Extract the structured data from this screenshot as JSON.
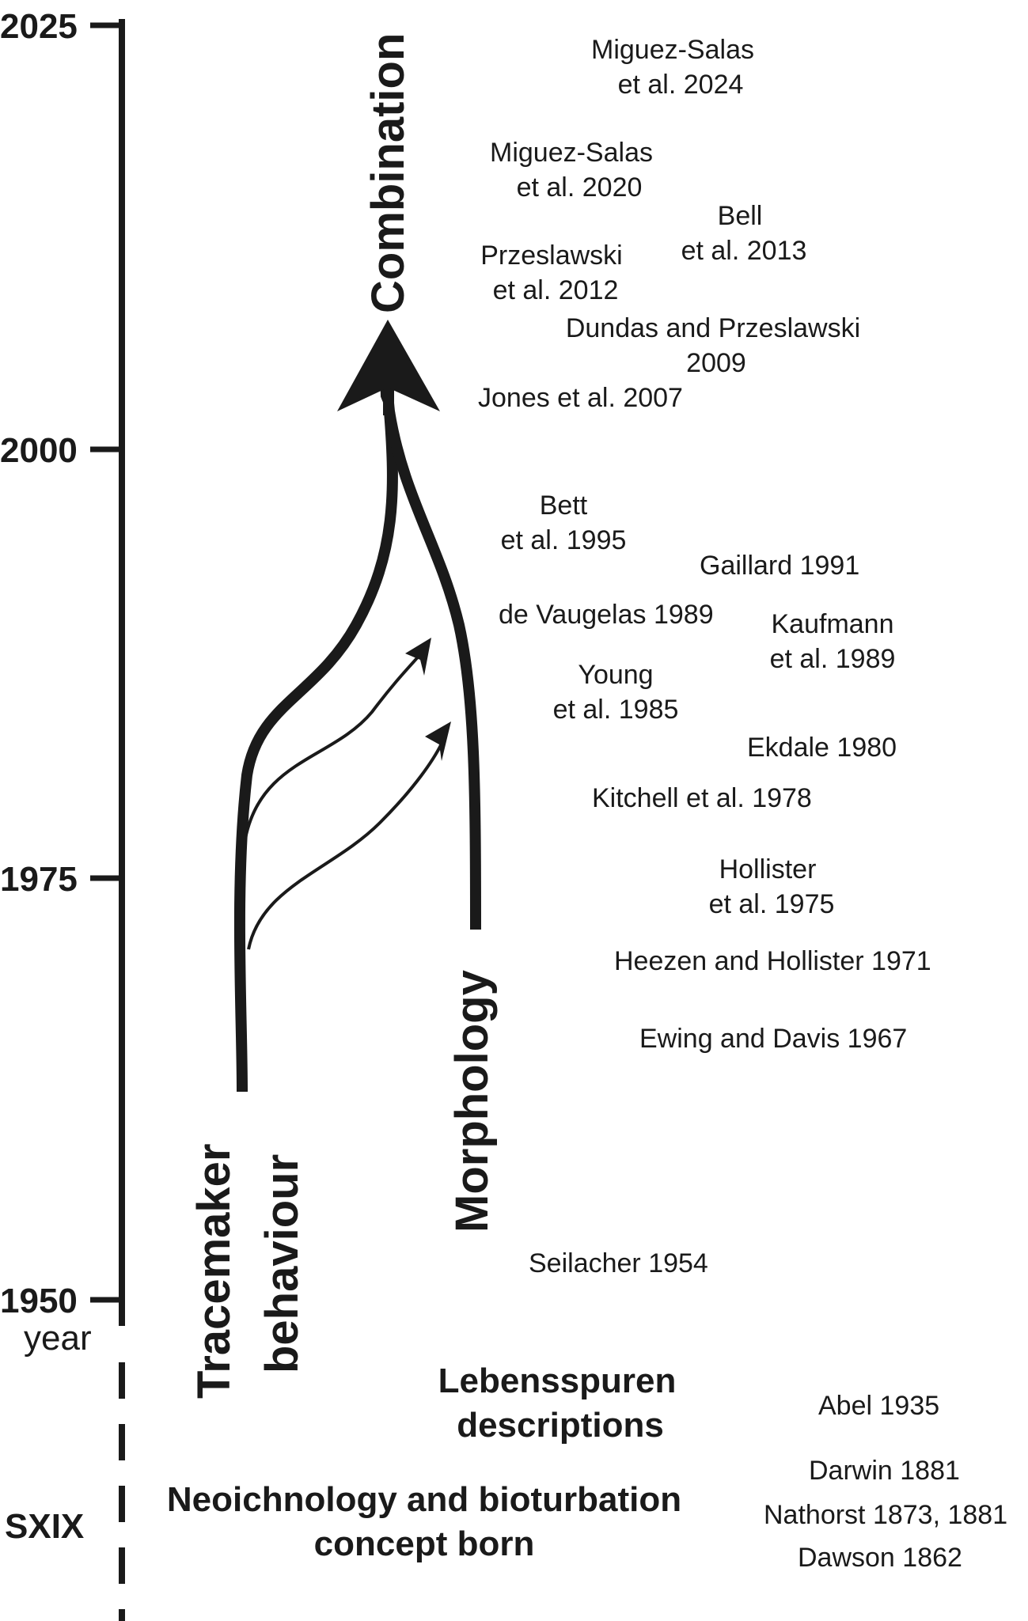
{
  "timeline": {
    "ticks": [
      {
        "label": "2025"
      },
      {
        "label": "2000"
      },
      {
        "label": "1975"
      },
      {
        "label": "1950"
      }
    ],
    "unit_label": "year",
    "era_label": "SXIX"
  },
  "branches": {
    "combination": "Combination",
    "behaviour_line1": "Tracemaker",
    "behaviour_line2": "behaviour",
    "morphology": "Morphology"
  },
  "eras": {
    "lebensspuren_line1": "Lebensspuren",
    "lebensspuren_line2": "descriptions",
    "neoichnology_line1": "Neoichnology and bioturbation",
    "neoichnology_line2": "concept born"
  },
  "references": [
    {
      "lines": [
        "Miguez-Salas",
        "et al. 2024"
      ]
    },
    {
      "lines": [
        "Miguez-Salas",
        "et al. 2020"
      ]
    },
    {
      "lines": [
        "Bell",
        "et al. 2013"
      ]
    },
    {
      "lines": [
        "Przeslawski",
        "et al. 2012"
      ]
    },
    {
      "lines": [
        "Dundas and Przeslawski",
        "2009"
      ]
    },
    {
      "lines": [
        "Jones et al. 2007"
      ]
    },
    {
      "lines": [
        "Bett",
        "et al. 1995"
      ]
    },
    {
      "lines": [
        "Gaillard 1991"
      ]
    },
    {
      "lines": [
        "de Vaugelas 1989"
      ]
    },
    {
      "lines": [
        "Kaufmann",
        "et al. 1989"
      ]
    },
    {
      "lines": [
        "Young",
        "et al. 1985"
      ]
    },
    {
      "lines": [
        "Ekdale 1980"
      ]
    },
    {
      "lines": [
        "Kitchell et al. 1978"
      ]
    },
    {
      "lines": [
        "Hollister",
        "et al. 1975"
      ]
    },
    {
      "lines": [
        "Heezen and Hollister 1971"
      ]
    },
    {
      "lines": [
        "Ewing and Davis 1967"
      ]
    },
    {
      "lines": [
        "Seilacher 1954"
      ]
    },
    {
      "lines": [
        "Abel 1935"
      ]
    },
    {
      "lines": [
        "Darwin 1881"
      ]
    },
    {
      "lines": [
        "Nathorst 1873, 1881"
      ]
    },
    {
      "lines": [
        "Dawson 1862"
      ]
    }
  ]
}
